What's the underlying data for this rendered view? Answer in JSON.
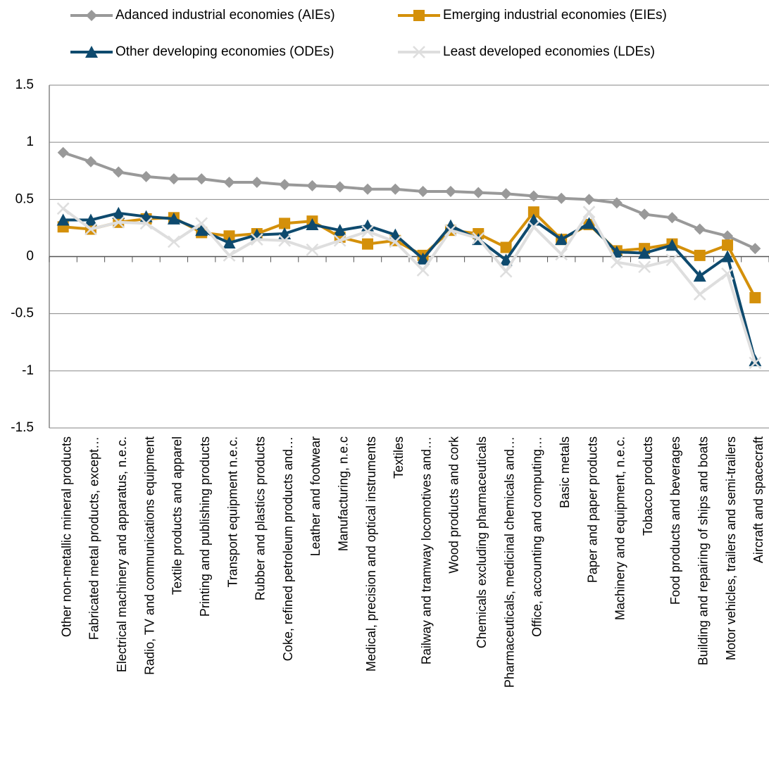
{
  "chart_data": {
    "type": "line",
    "categories": [
      "Other non-metallic mineral products",
      "Fabricated metal products, except…",
      "Electrical machinery and apparatus, n.e.c.",
      "Radio, TV and communications equipment",
      "Textile products and apparel",
      "Printing and publishing products",
      "Transport equipment n.e.c.",
      "Rubber and plastics products",
      "Coke, refined petroleum products and…",
      "Leather and footwear",
      "Manufacturing, n.e.c",
      "Medical, precision and optical instruments",
      "Textiles",
      "Railway and tramway locomotives and…",
      "Wood products and cork",
      "Chemicals excluding pharmaceuticals",
      "Pharmaceuticals, medicinal chemicals and…",
      "Office, accounting and computing…",
      "Basic metals",
      "Paper and paper products",
      "Machinery and equipment, n.e.c.",
      "Tobacco products",
      "Food products and beverages",
      "Building and repairing of ships and boats",
      "Motor vehicles, trailers and semi-trailers",
      "Aircraft and spacecraft"
    ],
    "series": [
      {
        "name": "Adanced industrial economies (AIEs)",
        "color": "#999999",
        "marker": "diamond",
        "values": [
          0.91,
          0.83,
          0.74,
          0.7,
          0.68,
          0.68,
          0.65,
          0.65,
          0.63,
          0.62,
          0.61,
          0.59,
          0.59,
          0.57,
          0.57,
          0.56,
          0.55,
          0.53,
          0.51,
          0.5,
          0.47,
          0.37,
          0.34,
          0.24,
          0.18,
          0.07
        ]
      },
      {
        "name": "Emerging industrial economies (EIEs)",
        "color": "#d4900a",
        "marker": "square",
        "values": [
          0.26,
          0.24,
          0.3,
          0.33,
          0.34,
          0.21,
          0.18,
          0.2,
          0.29,
          0.31,
          0.17,
          0.11,
          0.14,
          0.01,
          0.23,
          0.2,
          0.08,
          0.39,
          0.15,
          0.28,
          0.05,
          0.07,
          0.11,
          0.01,
          0.1,
          -0.36
        ]
      },
      {
        "name": "Other developing economies (ODEs)",
        "color": "#0e4a6e",
        "marker": "triangle",
        "values": [
          0.32,
          0.32,
          0.38,
          0.35,
          0.33,
          0.23,
          0.12,
          0.19,
          0.2,
          0.28,
          0.23,
          0.27,
          0.19,
          -0.02,
          0.27,
          0.15,
          -0.03,
          0.32,
          0.15,
          0.29,
          0.04,
          0.03,
          0.1,
          -0.17,
          0.0,
          -0.91
        ]
      },
      {
        "name": "Least developed economies (LDEs)",
        "color": "#dedede",
        "marker": "x",
        "values": [
          0.42,
          0.24,
          0.3,
          0.29,
          0.13,
          0.29,
          0.01,
          0.15,
          0.14,
          0.06,
          0.14,
          0.22,
          0.13,
          -0.12,
          0.23,
          0.16,
          -0.13,
          0.26,
          0.02,
          0.39,
          -0.05,
          -0.09,
          -0.03,
          -0.33,
          -0.15,
          -0.93
        ]
      }
    ],
    "ylim": [
      -1.5,
      1.5
    ],
    "yticks": [
      1.5,
      1,
      0.5,
      0,
      -0.5,
      -1,
      -1.5
    ],
    "grid": true
  }
}
